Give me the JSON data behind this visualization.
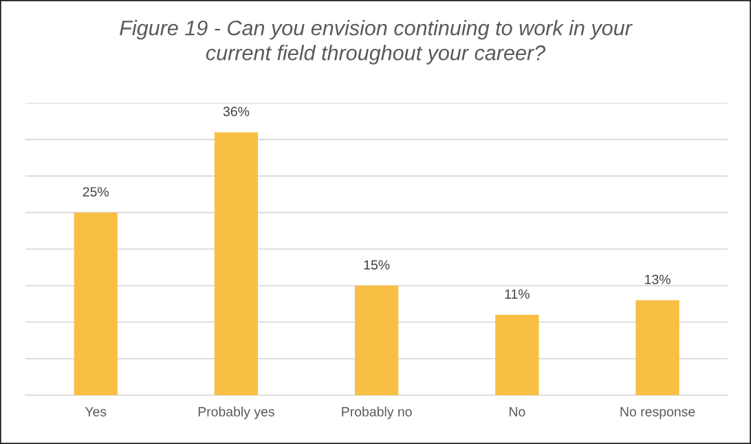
{
  "chart_data": {
    "type": "bar",
    "title": "Figure 19 - Can you envision continuing to work in your current field throughout your career?",
    "categories": [
      "Yes",
      "Probably yes",
      "Probably no",
      "No",
      "No response"
    ],
    "values": [
      25,
      36,
      15,
      11,
      13
    ],
    "value_labels": [
      "25%",
      "36%",
      "15%",
      "11%",
      "13%"
    ],
    "color": "#f9bf45",
    "ylim": [
      0,
      40
    ],
    "yticks": [
      {
        "value": 0,
        "label": null
      },
      {
        "value": 5,
        "label": null
      },
      {
        "value": 10,
        "label": null
      },
      {
        "value": 15,
        "label": null
      },
      {
        "value": 20,
        "label": null
      },
      {
        "value": 25,
        "label": null
      },
      {
        "value": 30,
        "label": null
      },
      {
        "value": 35,
        "label": null
      },
      {
        "value": 40,
        "label": null
      }
    ],
    "tick_labels": "x",
    "grid": "y",
    "legend": false
  }
}
